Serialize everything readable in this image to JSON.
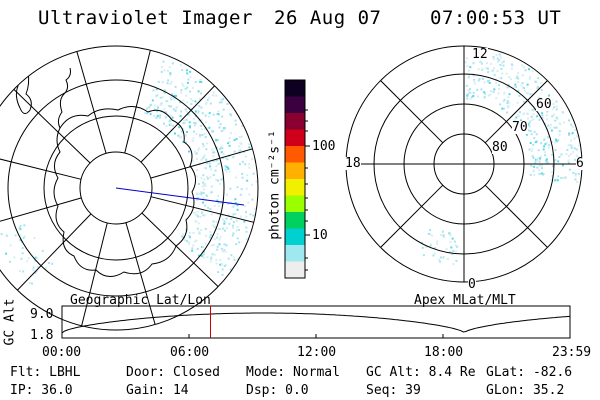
{
  "header": {
    "instrument": "Ultraviolet Imager",
    "date": "26 Aug 07",
    "time": "07:00:53 UT"
  },
  "left_map": {
    "label": "Geographic Lat/Lon"
  },
  "right_map": {
    "label": "Apex MLat/MLT",
    "mlt_labels": [
      "12",
      "18",
      "6",
      "0"
    ],
    "lat_labels": [
      "60",
      "70",
      "80"
    ]
  },
  "colorbar": {
    "unit_label": "photon cm⁻²s⁻¹",
    "ticks": [
      "100",
      "10"
    ],
    "colors": [
      "#0d0020",
      "#3a0040",
      "#8a0030",
      "#d0001a",
      "#ff5a00",
      "#ffb000",
      "#f0f000",
      "#9aff00",
      "#00d060",
      "#00d0d0",
      "#a0e8f0",
      "#eeeeee"
    ]
  },
  "orbit_plot": {
    "y_label": "GC Alt",
    "y_ticks": [
      "9.0",
      "1.8"
    ],
    "x_ticks": [
      "00:00",
      "06:00",
      "12:00",
      "18:00",
      "23:59"
    ],
    "current_time_fraction": 0.2923
  },
  "status": {
    "flt": "Flt: LBHL",
    "door": "Door: Closed",
    "mode": "Mode: Normal",
    "gc_alt": "GC Alt: 8.4 Re",
    "glat": "GLat: -82.6",
    "ip": "IP: 36.0",
    "gain": "Gain: 14",
    "dsp": "Dsp:    0.0",
    "seq": "Seq: 39",
    "glon": "GLon:  35.2"
  },
  "colors": {
    "marker_line": "#cc0000",
    "track_line": "#0000cc",
    "aurora_speckle": "#a8e4f0",
    "aurora_bright": "#5ad8e8"
  }
}
